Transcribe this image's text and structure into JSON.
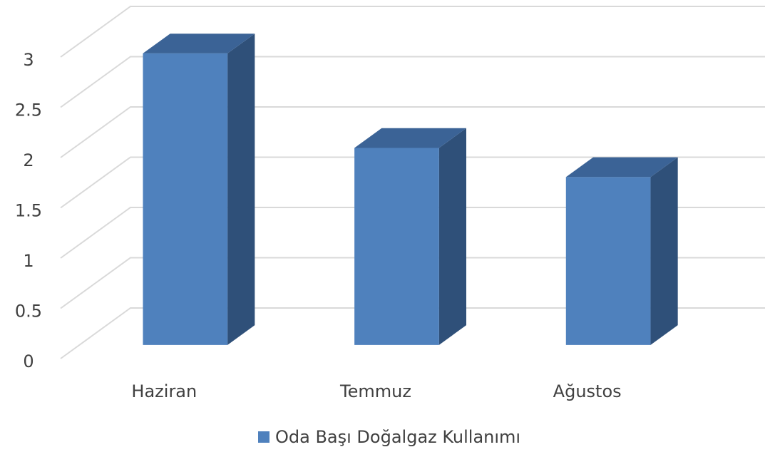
{
  "chart_data": {
    "type": "bar3d",
    "categories": [
      "Haziran",
      "Temmuz",
      "Ağustos"
    ],
    "series": [
      {
        "name": "Oda Başı Doğalgaz Kullanımı",
        "color": "#4f81bd",
        "values": [
          2.9,
          1.96,
          1.67
        ]
      }
    ],
    "ylim": [
      0,
      3
    ],
    "yticks": [
      0,
      0.5,
      1,
      1.5,
      2,
      2.5,
      3
    ],
    "grid": true,
    "legend": "bottom"
  }
}
